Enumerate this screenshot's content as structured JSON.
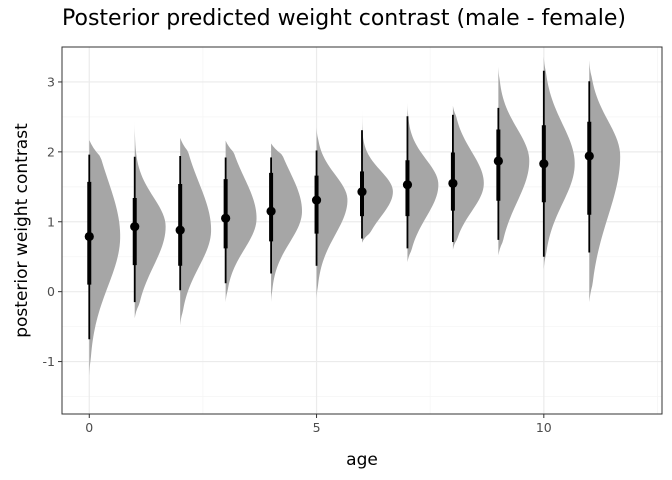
{
  "chart_data": {
    "type": "violin",
    "title": "Posterior predicted weight contrast (male - female)",
    "xlabel": "age",
    "ylabel": "posterior weight contrast",
    "xlim": [
      -0.6,
      12.6
    ],
    "ylim": [
      -1.75,
      3.5
    ],
    "x_ticks": [
      0,
      5,
      10
    ],
    "y_ticks": [
      -1,
      0,
      1,
      2,
      3
    ],
    "grid": true,
    "theme": "bw",
    "colors": {
      "density": "#a6a6a6",
      "interval": "#000000",
      "grid_major": "#ebebeb",
      "grid_minor": "#f5f5f5",
      "panel_border": "#333333"
    },
    "series": [
      {
        "age": 0,
        "median": 0.79,
        "q66": [
          0.1,
          1.57
        ],
        "q95": [
          -0.68,
          1.96
        ],
        "range": [
          -1.2,
          2.17
        ]
      },
      {
        "age": 1,
        "median": 0.93,
        "q66": [
          0.38,
          1.34
        ],
        "q95": [
          -0.15,
          1.93
        ],
        "range": [
          -0.38,
          2.43
        ]
      },
      {
        "age": 2,
        "median": 0.88,
        "q66": [
          0.37,
          1.54
        ],
        "q95": [
          0.02,
          1.94
        ],
        "range": [
          -0.48,
          2.2
        ]
      },
      {
        "age": 3,
        "median": 1.05,
        "q66": [
          0.62,
          1.61
        ],
        "q95": [
          0.12,
          1.92
        ],
        "range": [
          -0.15,
          2.16
        ]
      },
      {
        "age": 4,
        "median": 1.15,
        "q66": [
          0.72,
          1.7
        ],
        "q95": [
          0.26,
          1.92
        ],
        "range": [
          -0.15,
          2.12
        ]
      },
      {
        "age": 5,
        "median": 1.31,
        "q66": [
          0.83,
          1.66
        ],
        "q95": [
          0.37,
          2.02
        ],
        "range": [
          -0.1,
          2.35
        ]
      },
      {
        "age": 6,
        "median": 1.43,
        "q66": [
          1.08,
          1.72
        ],
        "q95": [
          0.76,
          2.31
        ],
        "range": [
          0.7,
          2.6
        ]
      },
      {
        "age": 7,
        "median": 1.53,
        "q66": [
          1.08,
          1.88
        ],
        "q95": [
          0.62,
          2.51
        ],
        "range": [
          0.42,
          2.7
        ]
      },
      {
        "age": 8,
        "median": 1.55,
        "q66": [
          1.16,
          1.99
        ],
        "q95": [
          0.71,
          2.53
        ],
        "range": [
          0.6,
          2.66
        ]
      },
      {
        "age": 9,
        "median": 1.87,
        "q66": [
          1.3,
          2.32
        ],
        "q95": [
          0.74,
          2.63
        ],
        "range": [
          0.52,
          3.22
        ]
      },
      {
        "age": 10,
        "median": 1.83,
        "q66": [
          1.28,
          2.38
        ],
        "q95": [
          0.5,
          3.16
        ],
        "range": [
          0.32,
          3.36
        ]
      },
      {
        "age": 11,
        "median": 1.94,
        "q66": [
          1.1,
          2.43
        ],
        "q95": [
          0.56,
          3.01
        ],
        "range": [
          -0.15,
          3.31
        ]
      }
    ]
  }
}
